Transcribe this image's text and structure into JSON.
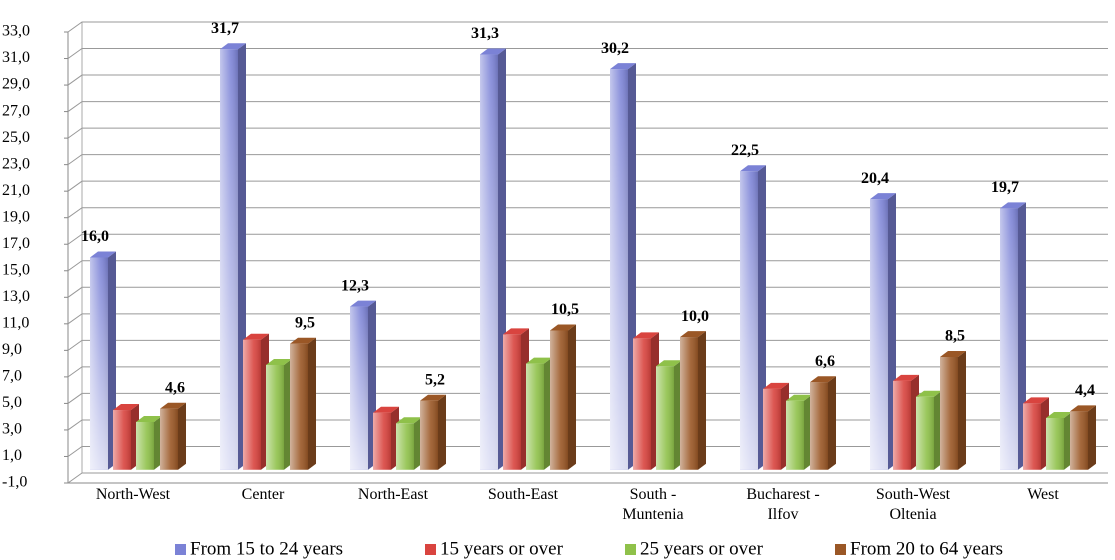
{
  "chart_data": {
    "type": "bar3d",
    "categories": [
      "North-West",
      "Center",
      "North-East",
      "South-East",
      "South -\nMuntenia",
      "Bucharest -\nIlfov",
      "South-West\nOltenia",
      "West"
    ],
    "series": [
      {
        "name": "From 15 to 24 years",
        "color": "#7b82d6",
        "values": [
          16.0,
          31.7,
          12.3,
          31.3,
          30.2,
          22.5,
          20.4,
          19.7
        ],
        "value_labels": [
          "16,0",
          "31,7",
          "12,3",
          "31,3",
          "30,2",
          "22,5",
          "20,4",
          "19,7"
        ]
      },
      {
        "name": "15 years or over",
        "color": "#d9443f",
        "values": [
          4.5,
          9.8,
          4.3,
          10.2,
          9.9,
          6.1,
          6.7,
          5.0
        ]
      },
      {
        "name": "25 years or over",
        "color": "#8fc14a",
        "values": [
          3.6,
          7.9,
          3.5,
          8.0,
          7.8,
          5.2,
          5.5,
          3.9
        ]
      },
      {
        "name": "From 20 to 64 years",
        "color": "#9a5726",
        "values": [
          4.6,
          9.5,
          5.2,
          10.5,
          10.0,
          6.6,
          8.5,
          4.4
        ],
        "value_labels": [
          "4,6",
          "9,5",
          "5,2",
          "10,5",
          "10,0",
          "6,6",
          "8,5",
          "4,4"
        ]
      }
    ],
    "ylim": [
      -1,
      33
    ],
    "yticks": [
      {
        "value": -1,
        "label": "-1,0"
      },
      {
        "value": 1,
        "label": "1,0"
      },
      {
        "value": 3,
        "label": "3,0"
      },
      {
        "value": 5,
        "label": "5,0"
      },
      {
        "value": 7,
        "label": "7,0"
      },
      {
        "value": 9,
        "label": "9,0"
      },
      {
        "value": 11,
        "label": "11,0"
      },
      {
        "value": 13,
        "label": "13,0"
      },
      {
        "value": 15,
        "label": "15,0"
      },
      {
        "value": 17,
        "label": "17,0"
      },
      {
        "value": 19,
        "label": "19,0"
      },
      {
        "value": 21,
        "label": "21,0"
      },
      {
        "value": 23,
        "label": "23,0"
      },
      {
        "value": 25,
        "label": "25,0"
      },
      {
        "value": 27,
        "label": "27,0"
      },
      {
        "value": 29,
        "label": "29,0"
      },
      {
        "value": 31,
        "label": "31,0"
      },
      {
        "value": 33,
        "label": "33,0"
      }
    ],
    "grid": true,
    "legend": "bottom"
  }
}
